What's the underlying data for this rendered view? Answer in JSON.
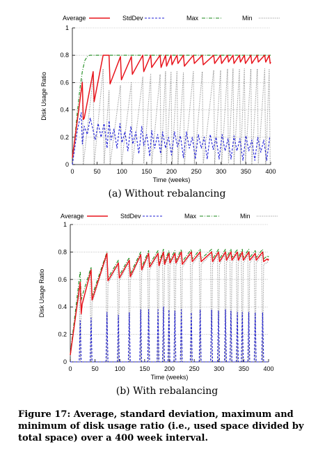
{
  "figure": {
    "caption": "Figure 17: Average, standard deviation, maximum and minimum of disk usage ratio (i.e., used space divided by total space) over a 400 week interval."
  },
  "legend": {
    "entries": [
      {
        "name": "Average",
        "color": "#e8141c",
        "style": "solid"
      },
      {
        "name": "StdDev",
        "color": "#1f1fd6",
        "style": "dashed"
      },
      {
        "name": "Max",
        "color": "#1b8a1b",
        "style": "dash-dot"
      },
      {
        "name": "Min",
        "color": "#808080",
        "style": "dotted"
      }
    ]
  },
  "chart_data": [
    {
      "type": "line",
      "subcaption": "(a) Without rebalancing",
      "xlabel": "Time (weeks)",
      "ylabel": "Disk Usage Ratio",
      "xlim": [
        0,
        400
      ],
      "ylim": [
        0,
        1
      ],
      "xticks": [
        0,
        50,
        100,
        150,
        200,
        250,
        300,
        350,
        400
      ],
      "yticks": [
        0,
        0.2,
        0.4,
        0.6,
        0.8,
        1
      ],
      "grid": "horizontal",
      "legend_position": "top",
      "series": [
        {
          "name": "Average",
          "x": [
            0,
            20,
            22,
            24,
            42,
            44,
            62,
            64,
            74,
            76,
            97,
            99,
            119,
            121,
            142,
            144,
            158,
            160,
            177,
            179,
            188,
            190,
            199,
            201,
            211,
            213,
            224,
            226,
            244,
            246,
            262,
            264,
            285,
            287,
            299,
            301,
            313,
            315,
            324,
            326,
            337,
            339,
            347,
            349,
            360,
            362,
            373,
            375,
            388,
            390,
            397,
            399,
            400
          ],
          "y": [
            0.05,
            0.6,
            0.33,
            0.34,
            0.68,
            0.46,
            0.8,
            0.8,
            0.8,
            0.59,
            0.79,
            0.62,
            0.79,
            0.66,
            0.8,
            0.68,
            0.8,
            0.71,
            0.8,
            0.71,
            0.8,
            0.72,
            0.8,
            0.73,
            0.8,
            0.74,
            0.8,
            0.72,
            0.8,
            0.74,
            0.8,
            0.73,
            0.8,
            0.74,
            0.8,
            0.74,
            0.8,
            0.75,
            0.8,
            0.74,
            0.8,
            0.75,
            0.8,
            0.74,
            0.8,
            0.74,
            0.8,
            0.75,
            0.8,
            0.75,
            0.8,
            0.74,
            0.75
          ]
        },
        {
          "name": "StdDev",
          "x": [
            0,
            10,
            18,
            20,
            24,
            30,
            36,
            42,
            46,
            52,
            58,
            64,
            70,
            74,
            78,
            84,
            90,
            96,
            100,
            106,
            112,
            118,
            122,
            128,
            134,
            140,
            144,
            150,
            156,
            160,
            166,
            172,
            178,
            182,
            188,
            194,
            200,
            206,
            212,
            218,
            224,
            230,
            236,
            242,
            248,
            254,
            260,
            266,
            272,
            278,
            284,
            290,
            296,
            302,
            308,
            314,
            320,
            326,
            332,
            338,
            344,
            350,
            356,
            362,
            368,
            374,
            380,
            386,
            392,
            398,
            400
          ],
          "y": [
            0.0,
            0.25,
            0.38,
            0.15,
            0.28,
            0.22,
            0.34,
            0.25,
            0.18,
            0.3,
            0.2,
            0.3,
            0.12,
            0.32,
            0.18,
            0.26,
            0.12,
            0.3,
            0.16,
            0.24,
            0.1,
            0.28,
            0.15,
            0.24,
            0.08,
            0.28,
            0.14,
            0.22,
            0.06,
            0.25,
            0.12,
            0.22,
            0.08,
            0.24,
            0.12,
            0.2,
            0.07,
            0.24,
            0.13,
            0.21,
            0.05,
            0.24,
            0.12,
            0.2,
            0.04,
            0.22,
            0.12,
            0.2,
            0.04,
            0.22,
            0.11,
            0.2,
            0.04,
            0.22,
            0.1,
            0.19,
            0.04,
            0.21,
            0.1,
            0.19,
            0.03,
            0.21,
            0.1,
            0.18,
            0.03,
            0.2,
            0.09,
            0.18,
            0.03,
            0.2,
            0.2
          ]
        },
        {
          "name": "Max",
          "x": [
            0,
            5,
            10,
            15,
            20,
            25,
            30,
            35,
            40,
            400
          ],
          "y": [
            0.05,
            0.2,
            0.38,
            0.55,
            0.68,
            0.76,
            0.79,
            0.8,
            0.8,
            0.8
          ]
        },
        {
          "name": "Min",
          "x": [
            0,
            20,
            22,
            42,
            44,
            62,
            64,
            74,
            76,
            97,
            99,
            119,
            121,
            142,
            144,
            158,
            160,
            177,
            179,
            188,
            190,
            199,
            201,
            211,
            213,
            224,
            226,
            244,
            246,
            262,
            264,
            285,
            287,
            299,
            301,
            313,
            315,
            324,
            326,
            337,
            339,
            347,
            349,
            360,
            362,
            373,
            375,
            388,
            390,
            397,
            399,
            400
          ],
          "y": [
            0.0,
            0.62,
            0.0,
            0.64,
            0.0,
            0.7,
            0.0,
            0.54,
            0.0,
            0.58,
            0.0,
            0.6,
            0.0,
            0.64,
            0.0,
            0.66,
            0.0,
            0.66,
            0.0,
            0.68,
            0.0,
            0.68,
            0.0,
            0.68,
            0.0,
            0.67,
            0.0,
            0.68,
            0.0,
            0.68,
            0.0,
            0.69,
            0.0,
            0.69,
            0.0,
            0.7,
            0.0,
            0.7,
            0.0,
            0.7,
            0.0,
            0.7,
            0.0,
            0.7,
            0.0,
            0.7,
            0.0,
            0.7,
            0.0,
            0.7,
            0.0,
            0.0
          ]
        }
      ]
    },
    {
      "type": "line",
      "subcaption": "(b) With rebalancing",
      "xlabel": "Time (weeks)",
      "ylabel": "Disk Usage Ratio",
      "xlim": [
        0,
        400
      ],
      "ylim": [
        0,
        1
      ],
      "xticks": [
        0,
        50,
        100,
        150,
        200,
        250,
        300,
        350,
        400
      ],
      "yticks": [
        0,
        0.2,
        0.4,
        0.6,
        0.8,
        1
      ],
      "grid": "horizontal",
      "legend_position": "top",
      "series": [
        {
          "name": "Average",
          "x": [
            0,
            20,
            22,
            24,
            42,
            44,
            74,
            76,
            97,
            99,
            119,
            121,
            142,
            144,
            158,
            160,
            177,
            179,
            188,
            190,
            199,
            201,
            211,
            213,
            224,
            226,
            244,
            246,
            262,
            264,
            285,
            287,
            299,
            301,
            313,
            315,
            324,
            326,
            337,
            339,
            347,
            349,
            360,
            362,
            373,
            375,
            388,
            390,
            397,
            399,
            400
          ],
          "y": [
            0.05,
            0.58,
            0.35,
            0.42,
            0.67,
            0.45,
            0.79,
            0.59,
            0.72,
            0.61,
            0.74,
            0.62,
            0.78,
            0.67,
            0.79,
            0.69,
            0.79,
            0.7,
            0.8,
            0.71,
            0.79,
            0.72,
            0.79,
            0.72,
            0.8,
            0.71,
            0.8,
            0.73,
            0.8,
            0.73,
            0.8,
            0.73,
            0.8,
            0.73,
            0.8,
            0.74,
            0.8,
            0.74,
            0.8,
            0.74,
            0.8,
            0.74,
            0.8,
            0.74,
            0.79,
            0.74,
            0.8,
            0.73,
            0.75,
            0.74,
            0.75
          ]
        },
        {
          "name": "StdDev",
          "x": [
            0,
            18,
            20,
            22,
            40,
            42,
            44,
            72,
            74,
            76,
            95,
            97,
            99,
            117,
            119,
            121,
            140,
            142,
            144,
            156,
            158,
            160,
            175,
            177,
            179,
            186,
            188,
            190,
            197,
            199,
            201,
            209,
            211,
            213,
            222,
            224,
            226,
            242,
            244,
            246,
            260,
            262,
            264,
            283,
            285,
            287,
            297,
            299,
            301,
            311,
            313,
            315,
            322,
            324,
            326,
            335,
            337,
            339,
            345,
            347,
            349,
            358,
            360,
            362,
            371,
            373,
            375,
            386,
            388,
            390,
            400
          ],
          "y": [
            0.0,
            0.0,
            0.3,
            0.0,
            0.0,
            0.32,
            0.0,
            0.0,
            0.36,
            0.0,
            0.0,
            0.34,
            0.0,
            0.0,
            0.36,
            0.0,
            0.0,
            0.38,
            0.0,
            0.0,
            0.38,
            0.0,
            0.0,
            0.38,
            0.0,
            0.0,
            0.4,
            0.0,
            0.0,
            0.38,
            0.0,
            0.0,
            0.37,
            0.0,
            0.0,
            0.38,
            0.0,
            0.0,
            0.36,
            0.0,
            0.0,
            0.38,
            0.0,
            0.0,
            0.38,
            0.0,
            0.0,
            0.37,
            0.0,
            0.0,
            0.38,
            0.0,
            0.0,
            0.37,
            0.0,
            0.0,
            0.36,
            0.0,
            0.0,
            0.36,
            0.0,
            0.0,
            0.36,
            0.0,
            0.0,
            0.36,
            0.0,
            0.0,
            0.36,
            0.0,
            0.0
          ]
        },
        {
          "name": "Max",
          "x": [
            0,
            20,
            22,
            24,
            42,
            44,
            74,
            76,
            97,
            99,
            119,
            121,
            142,
            144,
            158,
            160,
            177,
            179,
            188,
            190,
            199,
            201,
            211,
            213,
            224,
            226,
            244,
            246,
            262,
            264,
            285,
            287,
            299,
            301,
            313,
            315,
            324,
            326,
            337,
            339,
            347,
            349,
            360,
            362,
            373,
            375,
            388,
            390,
            397,
            399,
            400
          ],
          "y": [
            0.06,
            0.66,
            0.45,
            0.48,
            0.69,
            0.48,
            0.8,
            0.61,
            0.74,
            0.63,
            0.76,
            0.64,
            0.8,
            0.69,
            0.81,
            0.71,
            0.81,
            0.72,
            0.82,
            0.73,
            0.81,
            0.74,
            0.81,
            0.74,
            0.82,
            0.73,
            0.82,
            0.75,
            0.82,
            0.75,
            0.82,
            0.75,
            0.82,
            0.75,
            0.82,
            0.76,
            0.82,
            0.76,
            0.82,
            0.76,
            0.82,
            0.76,
            0.82,
            0.76,
            0.81,
            0.76,
            0.82,
            0.75,
            0.77,
            0.76,
            0.77
          ]
        },
        {
          "name": "Min",
          "x": [
            0,
            18,
            20,
            22,
            40,
            42,
            44,
            72,
            74,
            76,
            95,
            97,
            99,
            117,
            119,
            121,
            140,
            142,
            144,
            156,
            158,
            160,
            175,
            177,
            179,
            186,
            188,
            190,
            197,
            199,
            201,
            209,
            211,
            213,
            222,
            224,
            226,
            242,
            244,
            246,
            260,
            262,
            264,
            283,
            285,
            287,
            297,
            299,
            301,
            311,
            313,
            315,
            322,
            324,
            326,
            335,
            337,
            339,
            345,
            347,
            349,
            358,
            360,
            362,
            371,
            373,
            375,
            386,
            388,
            390,
            400
          ],
          "y": [
            0.04,
            0.54,
            0.0,
            0.4,
            0.64,
            0.0,
            0.43,
            0.76,
            0.0,
            0.57,
            0.7,
            0.0,
            0.59,
            0.72,
            0.0,
            0.6,
            0.76,
            0.0,
            0.65,
            0.77,
            0.0,
            0.67,
            0.77,
            0.0,
            0.68,
            0.78,
            0.0,
            0.69,
            0.77,
            0.0,
            0.7,
            0.77,
            0.0,
            0.7,
            0.78,
            0.0,
            0.69,
            0.78,
            0.0,
            0.71,
            0.78,
            0.0,
            0.71,
            0.78,
            0.0,
            0.71,
            0.78,
            0.0,
            0.71,
            0.78,
            0.0,
            0.72,
            0.78,
            0.0,
            0.72,
            0.78,
            0.0,
            0.72,
            0.78,
            0.0,
            0.72,
            0.78,
            0.0,
            0.72,
            0.77,
            0.0,
            0.72,
            0.78,
            0.0,
            0.71,
            0.73
          ]
        }
      ]
    }
  ]
}
